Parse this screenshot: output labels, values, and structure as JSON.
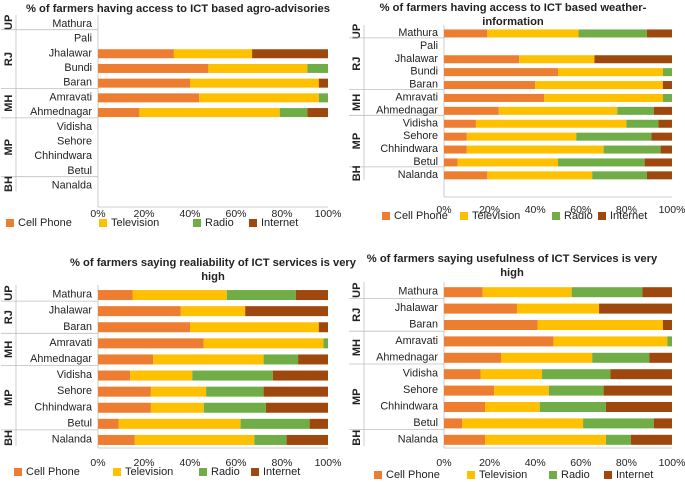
{
  "colors": {
    "Cell Phone": "#ED7D31",
    "Television": "#FFC000",
    "Radio": "#70AD47",
    "Internet": "#9E480E"
  },
  "chart_data": [
    {
      "type": "bar",
      "orientation": "horizontal-stacked",
      "title": "% of farmers having access to ICT based agro-advisories",
      "groups": [
        {
          "label": "UP",
          "rows": [
            "Mathura"
          ]
        },
        {
          "label": "RJ",
          "rows": [
            "Pali",
            "Jhalawar",
            "Bundi",
            "Baran"
          ]
        },
        {
          "label": "MH",
          "rows": [
            "Amravati",
            "Ahmednagar"
          ]
        },
        {
          "label": "MP",
          "rows": [
            "Vidisha",
            "Sehore",
            "Chhindwara",
            "Betul"
          ]
        },
        {
          "label": "BH",
          "rows": [
            "Nanalda"
          ]
        }
      ],
      "categories": [
        "Mathura",
        "Pali",
        "Jhalawar",
        "Bundi",
        "Baran",
        "Amravati",
        "Ahmednagar",
        "Vidisha",
        "Sehore",
        "Chhindwara",
        "Betul",
        "Nanalda"
      ],
      "series": [
        {
          "name": "Cell Phone",
          "values": [
            0,
            0,
            33,
            48,
            40,
            44,
            18,
            0,
            0,
            0,
            0,
            0
          ]
        },
        {
          "name": "Television",
          "values": [
            0,
            0,
            34,
            43,
            56,
            52,
            61,
            0,
            0,
            0,
            0,
            0
          ]
        },
        {
          "name": "Radio",
          "values": [
            0,
            0,
            0,
            9,
            0,
            4,
            12,
            0,
            0,
            0,
            0,
            0
          ]
        },
        {
          "name": "Internet",
          "values": [
            0,
            0,
            33,
            0,
            4,
            0,
            9,
            0,
            0,
            0,
            0,
            0
          ]
        }
      ],
      "xlim": [
        0,
        100
      ],
      "ticks": [
        "0%",
        "20%",
        "40%",
        "60%",
        "80%",
        "100%"
      ],
      "legend": "bottom"
    },
    {
      "type": "bar",
      "orientation": "horizontal-stacked",
      "title": "% of farmers having access to ICT based weather-information",
      "groups": [
        {
          "label": "UP",
          "rows": [
            "Mathura"
          ]
        },
        {
          "label": "RJ",
          "rows": [
            "Pali",
            "Jhalawar",
            "Bundi",
            "Baran"
          ]
        },
        {
          "label": "MH",
          "rows": [
            "Amravati",
            "Ahmednagar"
          ]
        },
        {
          "label": "MP",
          "rows": [
            "Vidisha",
            "Sehore",
            "Chhindwara",
            "Betul"
          ]
        },
        {
          "label": "BH",
          "rows": [
            "Nalanda"
          ]
        }
      ],
      "categories": [
        "Mathura",
        "Pali",
        "Jhalawar",
        "Bundi",
        "Baran",
        "Amravati",
        "Ahmednagar",
        "Vidisha",
        "Sehore",
        "Chhindwara",
        "Betul",
        "Nalanda"
      ],
      "series": [
        {
          "name": "Cell Phone",
          "values": [
            19,
            0,
            33,
            50,
            40,
            44,
            24,
            14,
            10,
            10,
            6,
            19
          ]
        },
        {
          "name": "Television",
          "values": [
            40,
            0,
            33,
            46,
            56,
            52,
            52,
            66,
            48,
            60,
            44,
            46
          ]
        },
        {
          "name": "Radio",
          "values": [
            30,
            0,
            0,
            4,
            0,
            4,
            16,
            14,
            33,
            25,
            38,
            24
          ]
        },
        {
          "name": "Internet",
          "values": [
            11,
            0,
            34,
            0,
            4,
            0,
            8,
            6,
            9,
            5,
            12,
            11
          ]
        }
      ],
      "xlim": [
        0,
        100
      ],
      "ticks": [
        "0%",
        "20%",
        "40%",
        "60%",
        "80%",
        "100%"
      ],
      "legend": "bottom"
    },
    {
      "type": "bar",
      "orientation": "horizontal-stacked",
      "title": "% of farmers saying realiability of ICT services is very high",
      "groups": [
        {
          "label": "UP",
          "rows": [
            "Mathura"
          ]
        },
        {
          "label": "RJ",
          "rows": [
            "Jhalawar",
            "Baran"
          ]
        },
        {
          "label": "MH",
          "rows": [
            "Amravati",
            "Ahmednagar"
          ]
        },
        {
          "label": "MP",
          "rows": [
            "Vidisha",
            "Sehore",
            "Chhindwara",
            "Betul"
          ]
        },
        {
          "label": "BH",
          "rows": [
            "Nalanda"
          ]
        }
      ],
      "categories": [
        "Mathura",
        "Jhalawar",
        "Baran",
        "Amravati",
        "Ahmednagar",
        "Vidisha",
        "Sehore",
        "Chhindwara",
        "Betul",
        "Nalanda"
      ],
      "series": [
        {
          "name": "Cell Phone",
          "values": [
            15,
            36,
            40,
            46,
            24,
            14,
            23,
            23,
            9,
            16
          ]
        },
        {
          "name": "Television",
          "values": [
            41,
            28,
            56,
            52,
            48,
            27,
            24,
            23,
            53,
            52
          ]
        },
        {
          "name": "Radio",
          "values": [
            30,
            0,
            0,
            2,
            15,
            35,
            25,
            27,
            30,
            14
          ]
        },
        {
          "name": "Internet",
          "values": [
            14,
            36,
            4,
            0,
            13,
            24,
            28,
            27,
            8,
            18
          ]
        }
      ],
      "xlim": [
        0,
        100
      ],
      "ticks": [
        "0%",
        "20%",
        "40%",
        "60%",
        "80%",
        "100%"
      ],
      "legend": "bottom"
    },
    {
      "type": "bar",
      "orientation": "horizontal-stacked",
      "title": "% of farmers saying usefulness of ICT Services is very high",
      "groups": [
        {
          "label": "UP",
          "rows": [
            "Mathura"
          ]
        },
        {
          "label": "RJ",
          "rows": [
            "Jhalawar",
            "Baran"
          ]
        },
        {
          "label": "MH",
          "rows": [
            "Amravati",
            "Ahmednagar"
          ]
        },
        {
          "label": "MP",
          "rows": [
            "Vidisha",
            "Sehore",
            "Chhindwara",
            "Betul"
          ]
        },
        {
          "label": "BH",
          "rows": [
            "Nalanda"
          ]
        }
      ],
      "categories": [
        "Mathura",
        "Jhalawar",
        "Baran",
        "Amravati",
        "Ahmednagar",
        "Vidisha",
        "Sehore",
        "Chhindwara",
        "Betul",
        "Nalanda"
      ],
      "series": [
        {
          "name": "Cell Phone",
          "values": [
            17,
            32,
            41,
            48,
            25,
            16,
            22,
            18,
            8,
            18
          ]
        },
        {
          "name": "Television",
          "values": [
            39,
            36,
            55,
            50,
            40,
            27,
            24,
            24,
            53,
            53
          ]
        },
        {
          "name": "Radio",
          "values": [
            31,
            0,
            0,
            2,
            25,
            30,
            24,
            29,
            31,
            11
          ]
        },
        {
          "name": "Internet",
          "values": [
            13,
            32,
            4,
            0,
            10,
            27,
            30,
            29,
            8,
            18
          ]
        }
      ],
      "xlim": [
        0,
        100
      ],
      "ticks": [
        "0%",
        "20%",
        "40%",
        "60%",
        "80%",
        "100%"
      ],
      "legend": "bottom"
    }
  ]
}
